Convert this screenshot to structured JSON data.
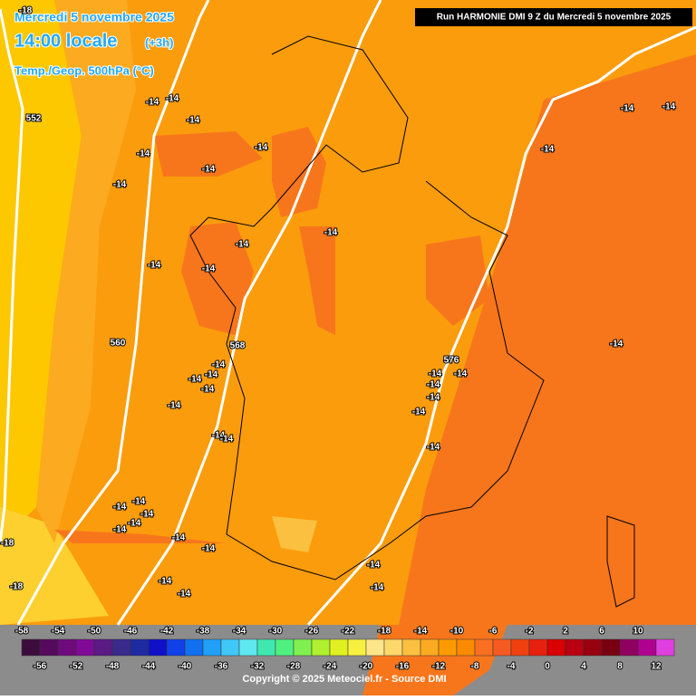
{
  "header": {
    "date": "Mercredi 5 novembre 2025",
    "time": "14:00 locale",
    "offset": "(+3h)",
    "field": "Temp./Geop. 500hPa (°C)",
    "run": "Run HARMONIE DMI 9 Z du Mercredi 5 novembre 2025"
  },
  "map_labels": [
    -18,
    552,
    -14,
    -14,
    -14,
    -14,
    -14,
    -14,
    -14,
    -14,
    -14,
    -14,
    -14,
    -14,
    -14,
    -14,
    -14,
    -14,
    -14,
    -14,
    560,
    568,
    576,
    -14,
    -14,
    -14,
    -14,
    -14,
    -14,
    -14,
    -14,
    -14,
    -14,
    -14,
    -14,
    -14,
    -14,
    -14,
    -14,
    -14,
    -14,
    -14,
    -14,
    -14,
    -18,
    -18
  ],
  "colorbar": {
    "top_labels": [
      -58,
      -54,
      -50,
      -46,
      -42,
      -38,
      -34,
      -30,
      -26,
      -22,
      -18,
      -14,
      -10,
      -6,
      -2,
      2,
      6,
      10
    ],
    "bottom_labels": [
      -56,
      -52,
      -48,
      -44,
      -40,
      -36,
      -32,
      -28,
      -24,
      -20,
      -16,
      -12,
      -8,
      -4,
      0,
      4,
      8,
      12
    ],
    "colors": [
      "#3c0d3c",
      "#560a5c",
      "#6e0a7c",
      "#800a96",
      "#5b1a86",
      "#3a2a8c",
      "#1e2aa0",
      "#1010c8",
      "#1040e8",
      "#1070f0",
      "#20a0f8",
      "#40c8f8",
      "#60e8f0",
      "#40e8b0",
      "#50f080",
      "#80f050",
      "#b0f030",
      "#e0f020",
      "#f8f040",
      "#fde68a",
      "#fdd86a",
      "#fcc040",
      "#fcaa20",
      "#fc9a00",
      "#fb8a00",
      "#fa7020",
      "#f55a20",
      "#f04010",
      "#e82010",
      "#d80000",
      "#b80010",
      "#980010",
      "#780010",
      "#900060",
      "#b00090",
      "#e040e0"
    ]
  },
  "footer": {
    "copyright": "Copyright © 2025 Meteociel.fr - Source DMI"
  }
}
